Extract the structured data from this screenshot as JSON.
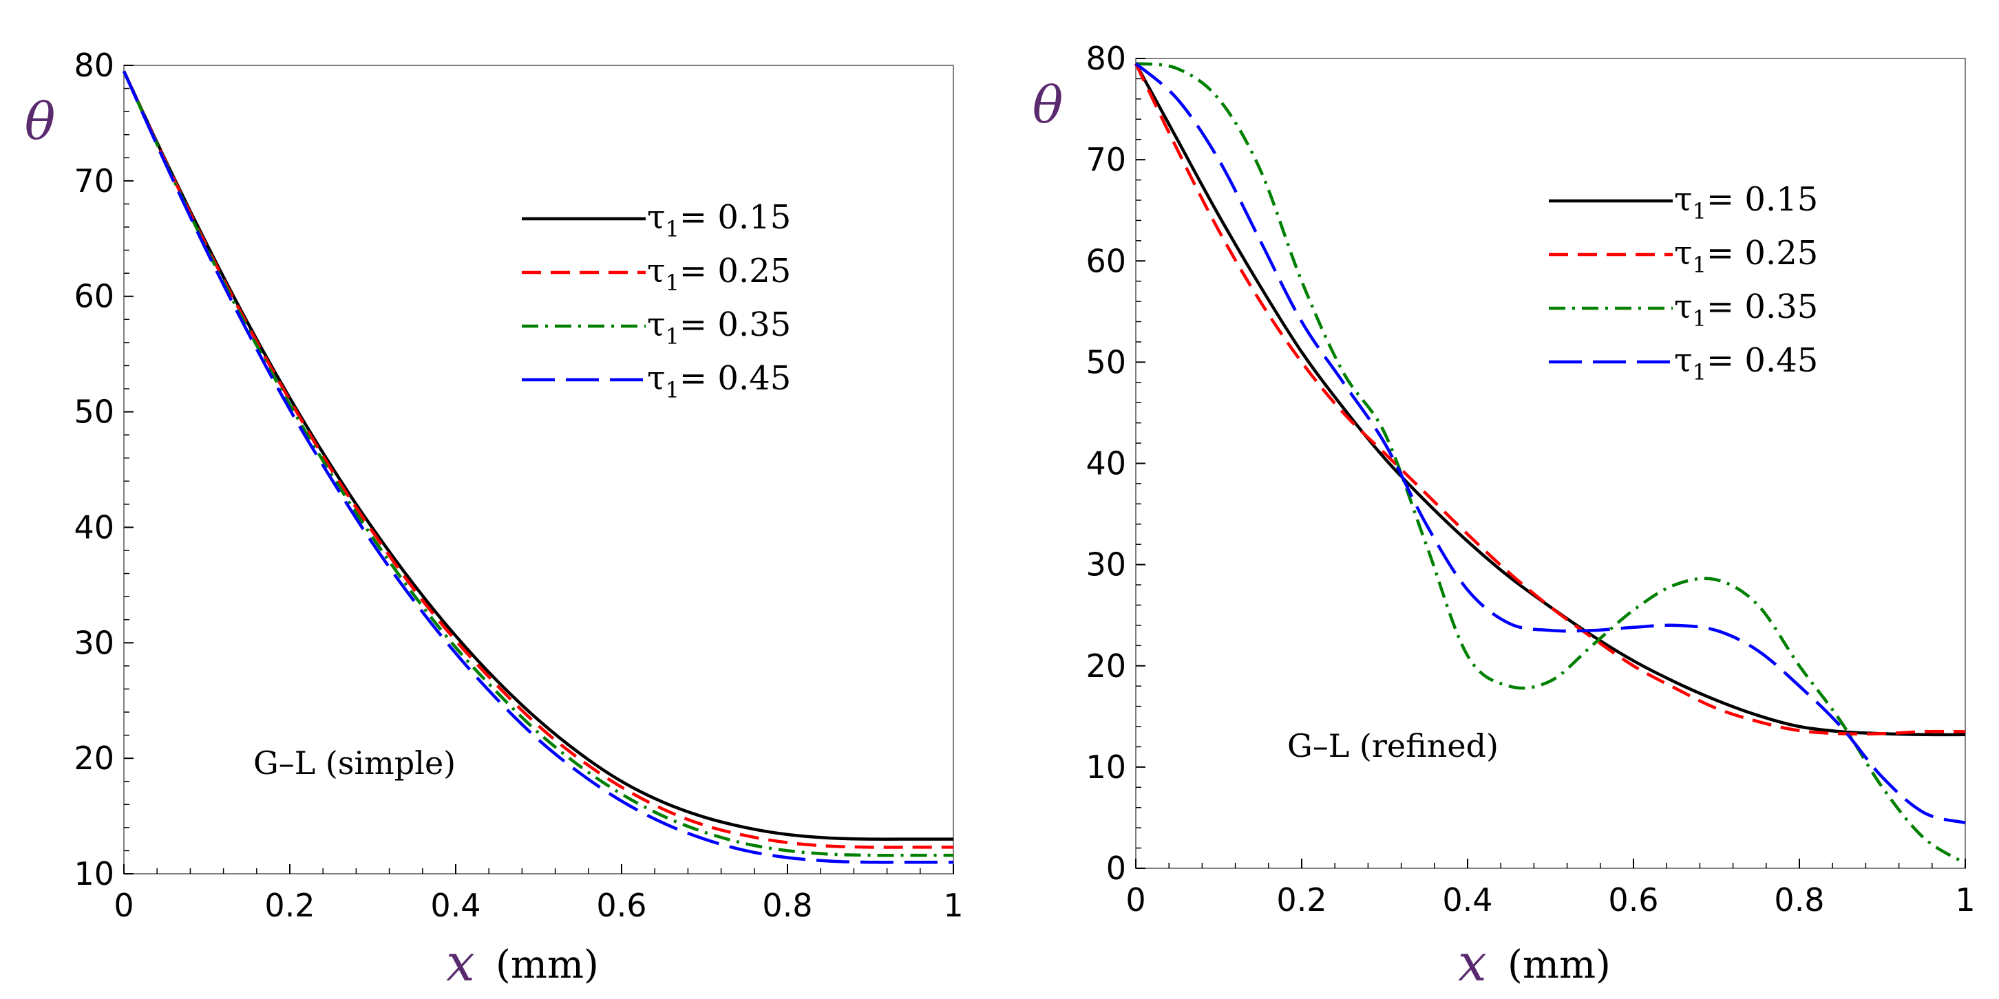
{
  "colors": {
    "black": "#000000",
    "red": "#ff0000",
    "green": "#008000",
    "blue": "#0000ff",
    "label": "#5a2a6e"
  },
  "chart_data": [
    {
      "type": "line",
      "annotation": "G–L (simple)",
      "ylabel": "θ",
      "xlabel_symbol": "x",
      "xlabel_unit": "(mm)",
      "xlim": [
        0,
        1
      ],
      "ylim": [
        10,
        80
      ],
      "xticks": [
        0,
        0.2,
        0.4,
        0.6,
        0.8,
        1
      ],
      "xtick_labels": [
        "0",
        "0.2",
        "0.4",
        "0.6",
        "0.8",
        "1"
      ],
      "yticks": [
        10,
        20,
        30,
        40,
        50,
        60,
        70,
        80
      ],
      "ytick_labels": [
        "10",
        "20",
        "30",
        "40",
        "50",
        "60",
        "70",
        "80"
      ],
      "legend_position": "top-right",
      "x": [
        0,
        0.05,
        0.1,
        0.15,
        0.2,
        0.25,
        0.3,
        0.35,
        0.4,
        0.45,
        0.5,
        0.55,
        0.6,
        0.65,
        0.7,
        0.75,
        0.8,
        0.85,
        0.9,
        0.95,
        1
      ],
      "series": [
        {
          "name": "τ1= 0.15",
          "label": "τ",
          "sub": "1",
          "value_text": "= 0.15",
          "color": "#000000",
          "dash": "",
          "values": [
            79.5,
            71.8,
            64.5,
            57.6,
            51.2,
            45.3,
            39.9,
            35.0,
            30.6,
            26.7,
            23.3,
            20.4,
            18.0,
            16.2,
            14.9,
            14.0,
            13.4,
            13.1,
            13.0,
            13.0,
            13.0
          ]
        },
        {
          "name": "τ1= 0.25",
          "label": "τ",
          "sub": "1",
          "value_text": "= 0.25",
          "color": "#ff0000",
          "dash": "28 14",
          "values": [
            79.5,
            71.7,
            64.3,
            57.4,
            51.0,
            45.0,
            39.6,
            34.6,
            30.2,
            26.3,
            22.8,
            19.9,
            17.5,
            15.6,
            14.2,
            13.3,
            12.7,
            12.4,
            12.3,
            12.3,
            12.3
          ]
        },
        {
          "name": "τ1= 0.35",
          "label": "τ",
          "sub": "1",
          "value_text": "= 0.35",
          "color": "#008000",
          "dash": "24 10 4 10",
          "values": [
            79.5,
            71.6,
            64.1,
            57.1,
            50.6,
            44.6,
            39.1,
            34.1,
            29.6,
            25.7,
            22.2,
            19.3,
            16.9,
            15.0,
            13.6,
            12.6,
            12.0,
            11.7,
            11.6,
            11.6,
            11.6
          ]
        },
        {
          "name": "τ1= 0.45",
          "label": "τ",
          "sub": "1",
          "value_text": "= 0.45",
          "color": "#0000ff",
          "dash": "48 16",
          "values": [
            79.5,
            71.5,
            63.9,
            56.8,
            50.2,
            44.2,
            38.6,
            33.6,
            29.1,
            25.1,
            21.6,
            18.7,
            16.3,
            14.4,
            13.0,
            12.0,
            11.4,
            11.1,
            11.0,
            11.0,
            11.0
          ]
        }
      ]
    },
    {
      "type": "line",
      "annotation": "G–L (refined)",
      "ylabel": "θ",
      "xlabel_symbol": "x",
      "xlabel_unit": "(mm)",
      "xlim": [
        0,
        1
      ],
      "ylim": [
        0,
        80
      ],
      "xticks": [
        0,
        0.2,
        0.4,
        0.6,
        0.8,
        1
      ],
      "xtick_labels": [
        "0",
        "0.2",
        "0.4",
        "0.6",
        "0.8",
        "1"
      ],
      "yticks": [
        0,
        10,
        20,
        30,
        40,
        50,
        60,
        70,
        80
      ],
      "ytick_labels": [
        "0",
        "10",
        "20",
        "30",
        "40",
        "50",
        "60",
        "70",
        "80"
      ],
      "legend_position": "top-right",
      "x": [
        0,
        0.05,
        0.1,
        0.15,
        0.2,
        0.25,
        0.3,
        0.35,
        0.4,
        0.45,
        0.5,
        0.55,
        0.6,
        0.65,
        0.7,
        0.75,
        0.8,
        0.85,
        0.9,
        0.95,
        1
      ],
      "series": [
        {
          "name": "τ1= 0.15",
          "label": "τ",
          "sub": "1",
          "value_text": "= 0.15",
          "color": "#000000",
          "dash": "",
          "values": [
            79.5,
            72.0,
            64.5,
            57.5,
            51.0,
            45.5,
            40.5,
            36.2,
            32.3,
            28.8,
            25.8,
            23.0,
            20.5,
            18.4,
            16.6,
            15.1,
            14.0,
            13.5,
            13.3,
            13.2,
            13.2
          ]
        },
        {
          "name": "τ1= 0.25",
          "label": "τ",
          "sub": "1",
          "value_text": "= 0.25",
          "color": "#ff0000",
          "dash": "28 14",
          "values": [
            79.5,
            71.0,
            63.0,
            56.0,
            50.0,
            45.0,
            41.0,
            37.0,
            33.0,
            29.2,
            25.8,
            22.8,
            20.0,
            17.8,
            15.8,
            14.5,
            13.6,
            13.3,
            13.3,
            13.5,
            13.5
          ]
        },
        {
          "name": "τ1= 0.35",
          "label": "τ",
          "sub": "1",
          "value_text": "= 0.35",
          "color": "#008000",
          "dash": "24 10 4 10",
          "values": [
            79.5,
            79.0,
            76.0,
            69.0,
            58.0,
            49.0,
            43.0,
            32.0,
            21.0,
            18.0,
            18.5,
            22.0,
            25.5,
            28.0,
            28.5,
            26.0,
            20.0,
            14.5,
            8.0,
            3.0,
            0.5
          ]
        },
        {
          "name": "τ1= 0.45",
          "label": "τ",
          "sub": "1",
          "value_text": "= 0.45",
          "color": "#0000ff",
          "dash": "48 16",
          "values": [
            79.5,
            76.0,
            70.0,
            62.0,
            54.0,
            48.0,
            42.0,
            34.0,
            27.5,
            24.2,
            23.5,
            23.5,
            23.8,
            24.0,
            23.5,
            21.5,
            18.0,
            14.0,
            9.0,
            5.5,
            4.5
          ]
        }
      ]
    }
  ]
}
